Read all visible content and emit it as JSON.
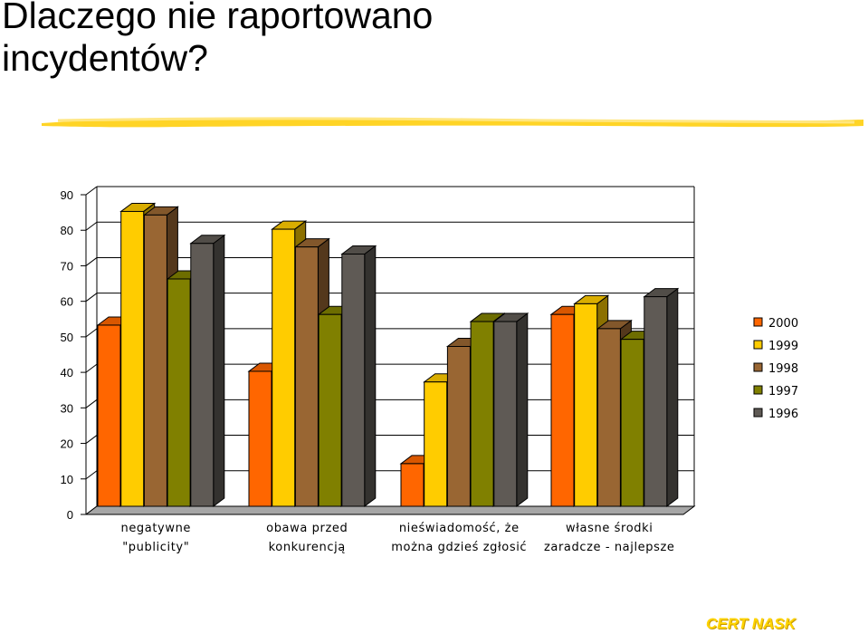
{
  "slide": {
    "title_line1": "Dlaczego nie raportowano",
    "title_line2": "incydentów?",
    "footer": "CERT NASK"
  },
  "colors": {
    "2000": "#ff6600",
    "1999": "#ffcc00",
    "1998": "#996633",
    "1997": "#808000",
    "1996": "#5f5a55",
    "brush": "#ffcc00"
  },
  "chart_data": {
    "type": "bar",
    "style": "3d-clustered",
    "categories": [
      [
        "negatywne",
        "\"publicity\""
      ],
      [
        "obawa przed",
        "konkurencją"
      ],
      [
        "nieświadomość, że",
        "można gdzieś zgłosić"
      ],
      [
        "własne środki",
        "zaradcze - najlepsze"
      ]
    ],
    "series": [
      {
        "name": "2000",
        "color": "#ff6600",
        "values": [
          51,
          38,
          12,
          54
        ]
      },
      {
        "name": "1999",
        "color": "#ffcc00",
        "values": [
          83,
          78,
          35,
          57
        ]
      },
      {
        "name": "1998",
        "color": "#996633",
        "values": [
          82,
          73,
          45,
          50
        ]
      },
      {
        "name": "1997",
        "color": "#808000",
        "values": [
          64,
          54,
          52,
          47
        ]
      },
      {
        "name": "1996",
        "color": "#5f5a55",
        "values": [
          74,
          71,
          52,
          59
        ]
      }
    ],
    "ylim": [
      0,
      90
    ],
    "yticks": [
      0,
      10,
      20,
      30,
      40,
      50,
      60,
      70,
      80,
      90
    ],
    "grid": true,
    "legend_position": "right",
    "title": "",
    "xlabel": "",
    "ylabel": ""
  }
}
